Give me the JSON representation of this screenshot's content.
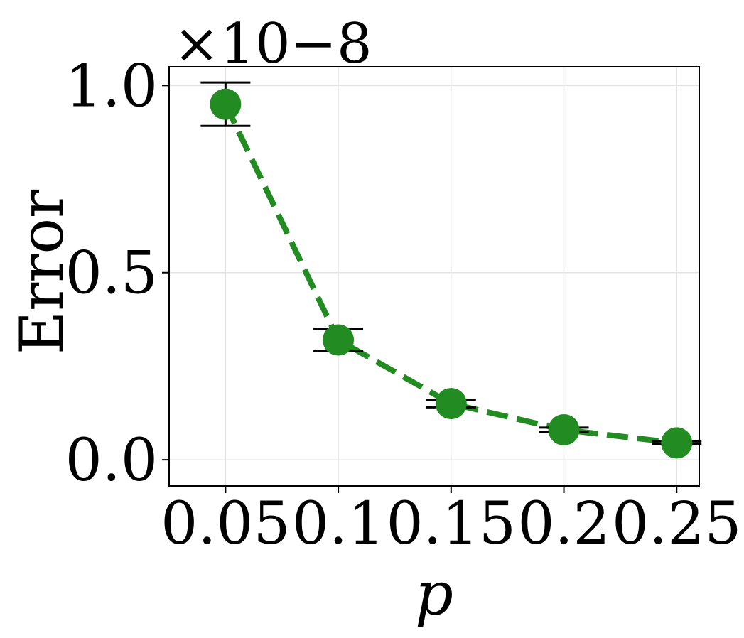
{
  "chart_data": {
    "type": "line",
    "title": "",
    "xlabel": "p",
    "ylabel": "Error",
    "y_offset_label": "×10−8",
    "x": [
      0.05,
      0.1,
      0.15,
      0.2,
      0.25
    ],
    "x_tick_labels": [
      "0.05",
      "0.1",
      "0.15",
      "0.2",
      "0.25"
    ],
    "y_ticks": [
      0.0,
      0.5,
      1.0
    ],
    "y_tick_labels": [
      "0.0",
      "0.5",
      "1.0"
    ],
    "xlim": [
      0.025,
      0.26
    ],
    "ylim": [
      -0.07,
      1.05
    ],
    "grid": true,
    "legend": "none",
    "series": [
      {
        "values": [
          0.95,
          0.32,
          0.15,
          0.08,
          0.045
        ],
        "error": [
          0.058,
          0.03,
          0.01,
          0.006,
          0.004
        ],
        "color": "#228B22",
        "line_style": "dashed",
        "marker": "circle"
      }
    ],
    "errorbar_color": "#000000"
  }
}
